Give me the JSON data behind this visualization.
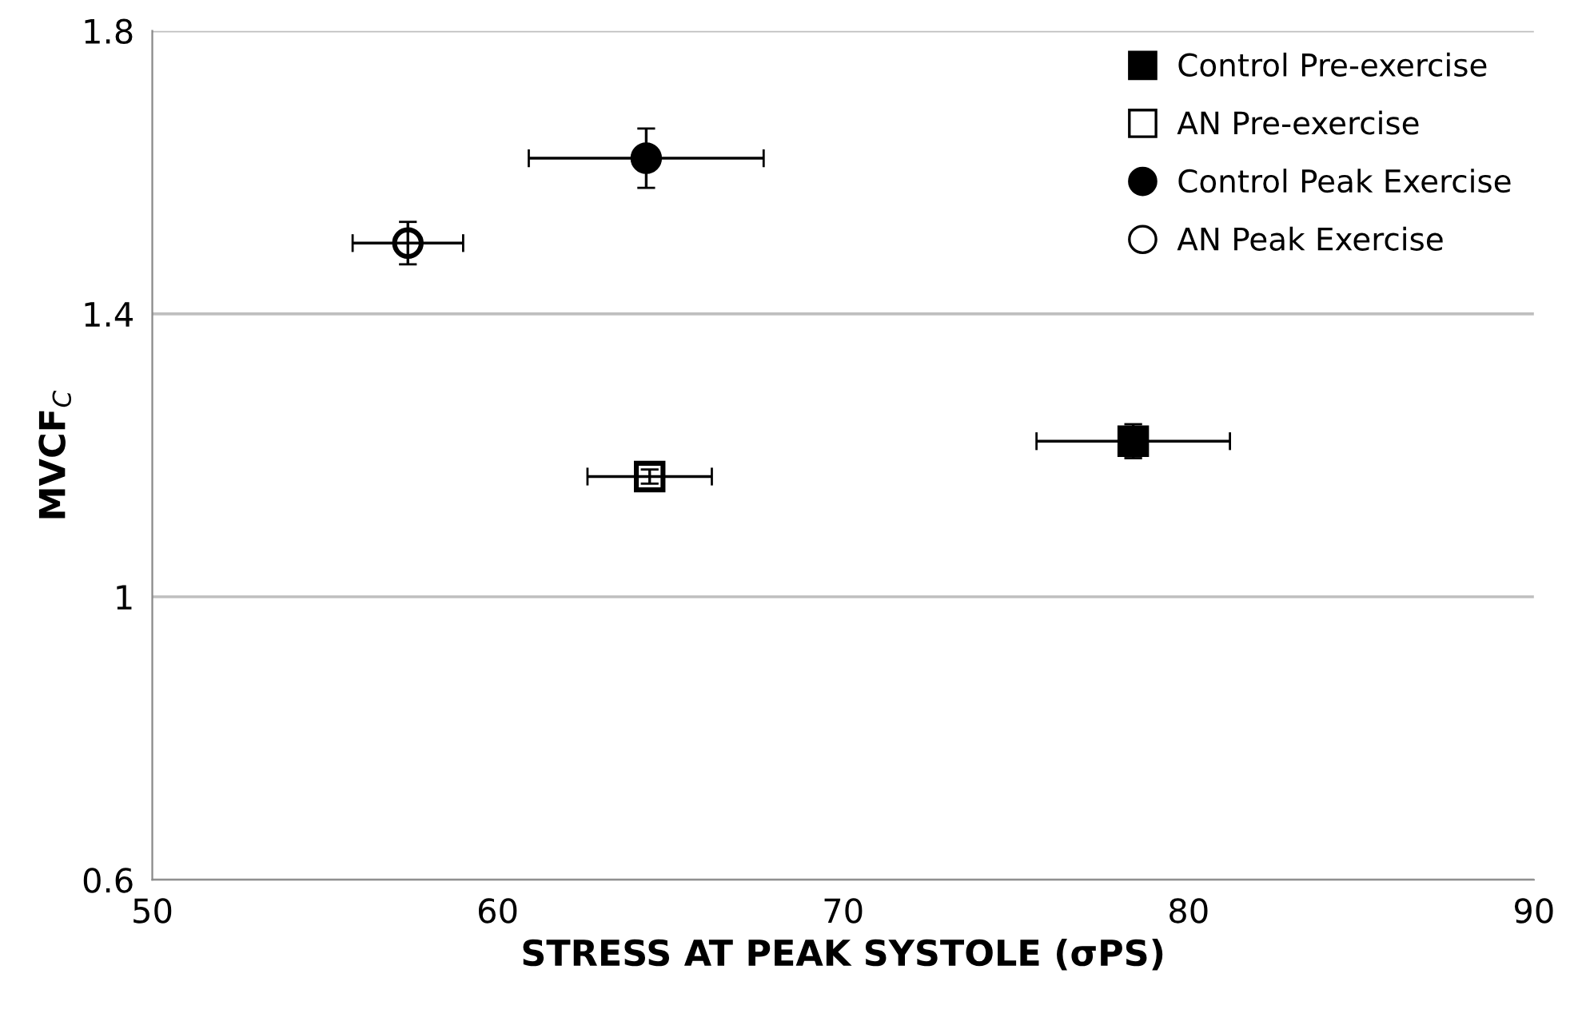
{
  "chart_data": {
    "type": "scatter",
    "xlabel": "STRESS AT PEAK SYSTOLE (σPS)",
    "ylabel": "MVCF$_{C}$",
    "xlim": [
      50,
      90
    ],
    "xticks": [
      50,
      60,
      70,
      80,
      90
    ],
    "ylim": [
      0.6,
      1.8
    ],
    "yticks": [
      0.6,
      1,
      1.4,
      1.8
    ],
    "grid": "y",
    "legend": "top right",
    "series": [
      {
        "name": "Control Pre-exercise",
        "marker": "square",
        "color": "#000000",
        "x": [
          78.4
        ],
        "values": [
          1.22
        ],
        "xerrors": [
          2.8
        ],
        "errors": [
          0.024
        ]
      },
      {
        "name": "AN Pre-exercise",
        "marker": "square",
        "color": "#ffffff",
        "x": [
          64.4
        ],
        "values": [
          1.17
        ],
        "xerrors": [
          1.8
        ],
        "errors": [
          0.01
        ]
      },
      {
        "name": "Control Peak Exercise",
        "marker": "circle",
        "color": "#000000",
        "x": [
          64.3
        ],
        "values": [
          1.62
        ],
        "xerrors": [
          3.4
        ],
        "errors": [
          0.042
        ]
      },
      {
        "name": "AN Peak Exercise",
        "marker": "circle",
        "color": "#ffffff",
        "x": [
          57.4
        ],
        "values": [
          1.5
        ],
        "xerrors": [
          1.6
        ],
        "errors": [
          0.03
        ]
      }
    ]
  }
}
